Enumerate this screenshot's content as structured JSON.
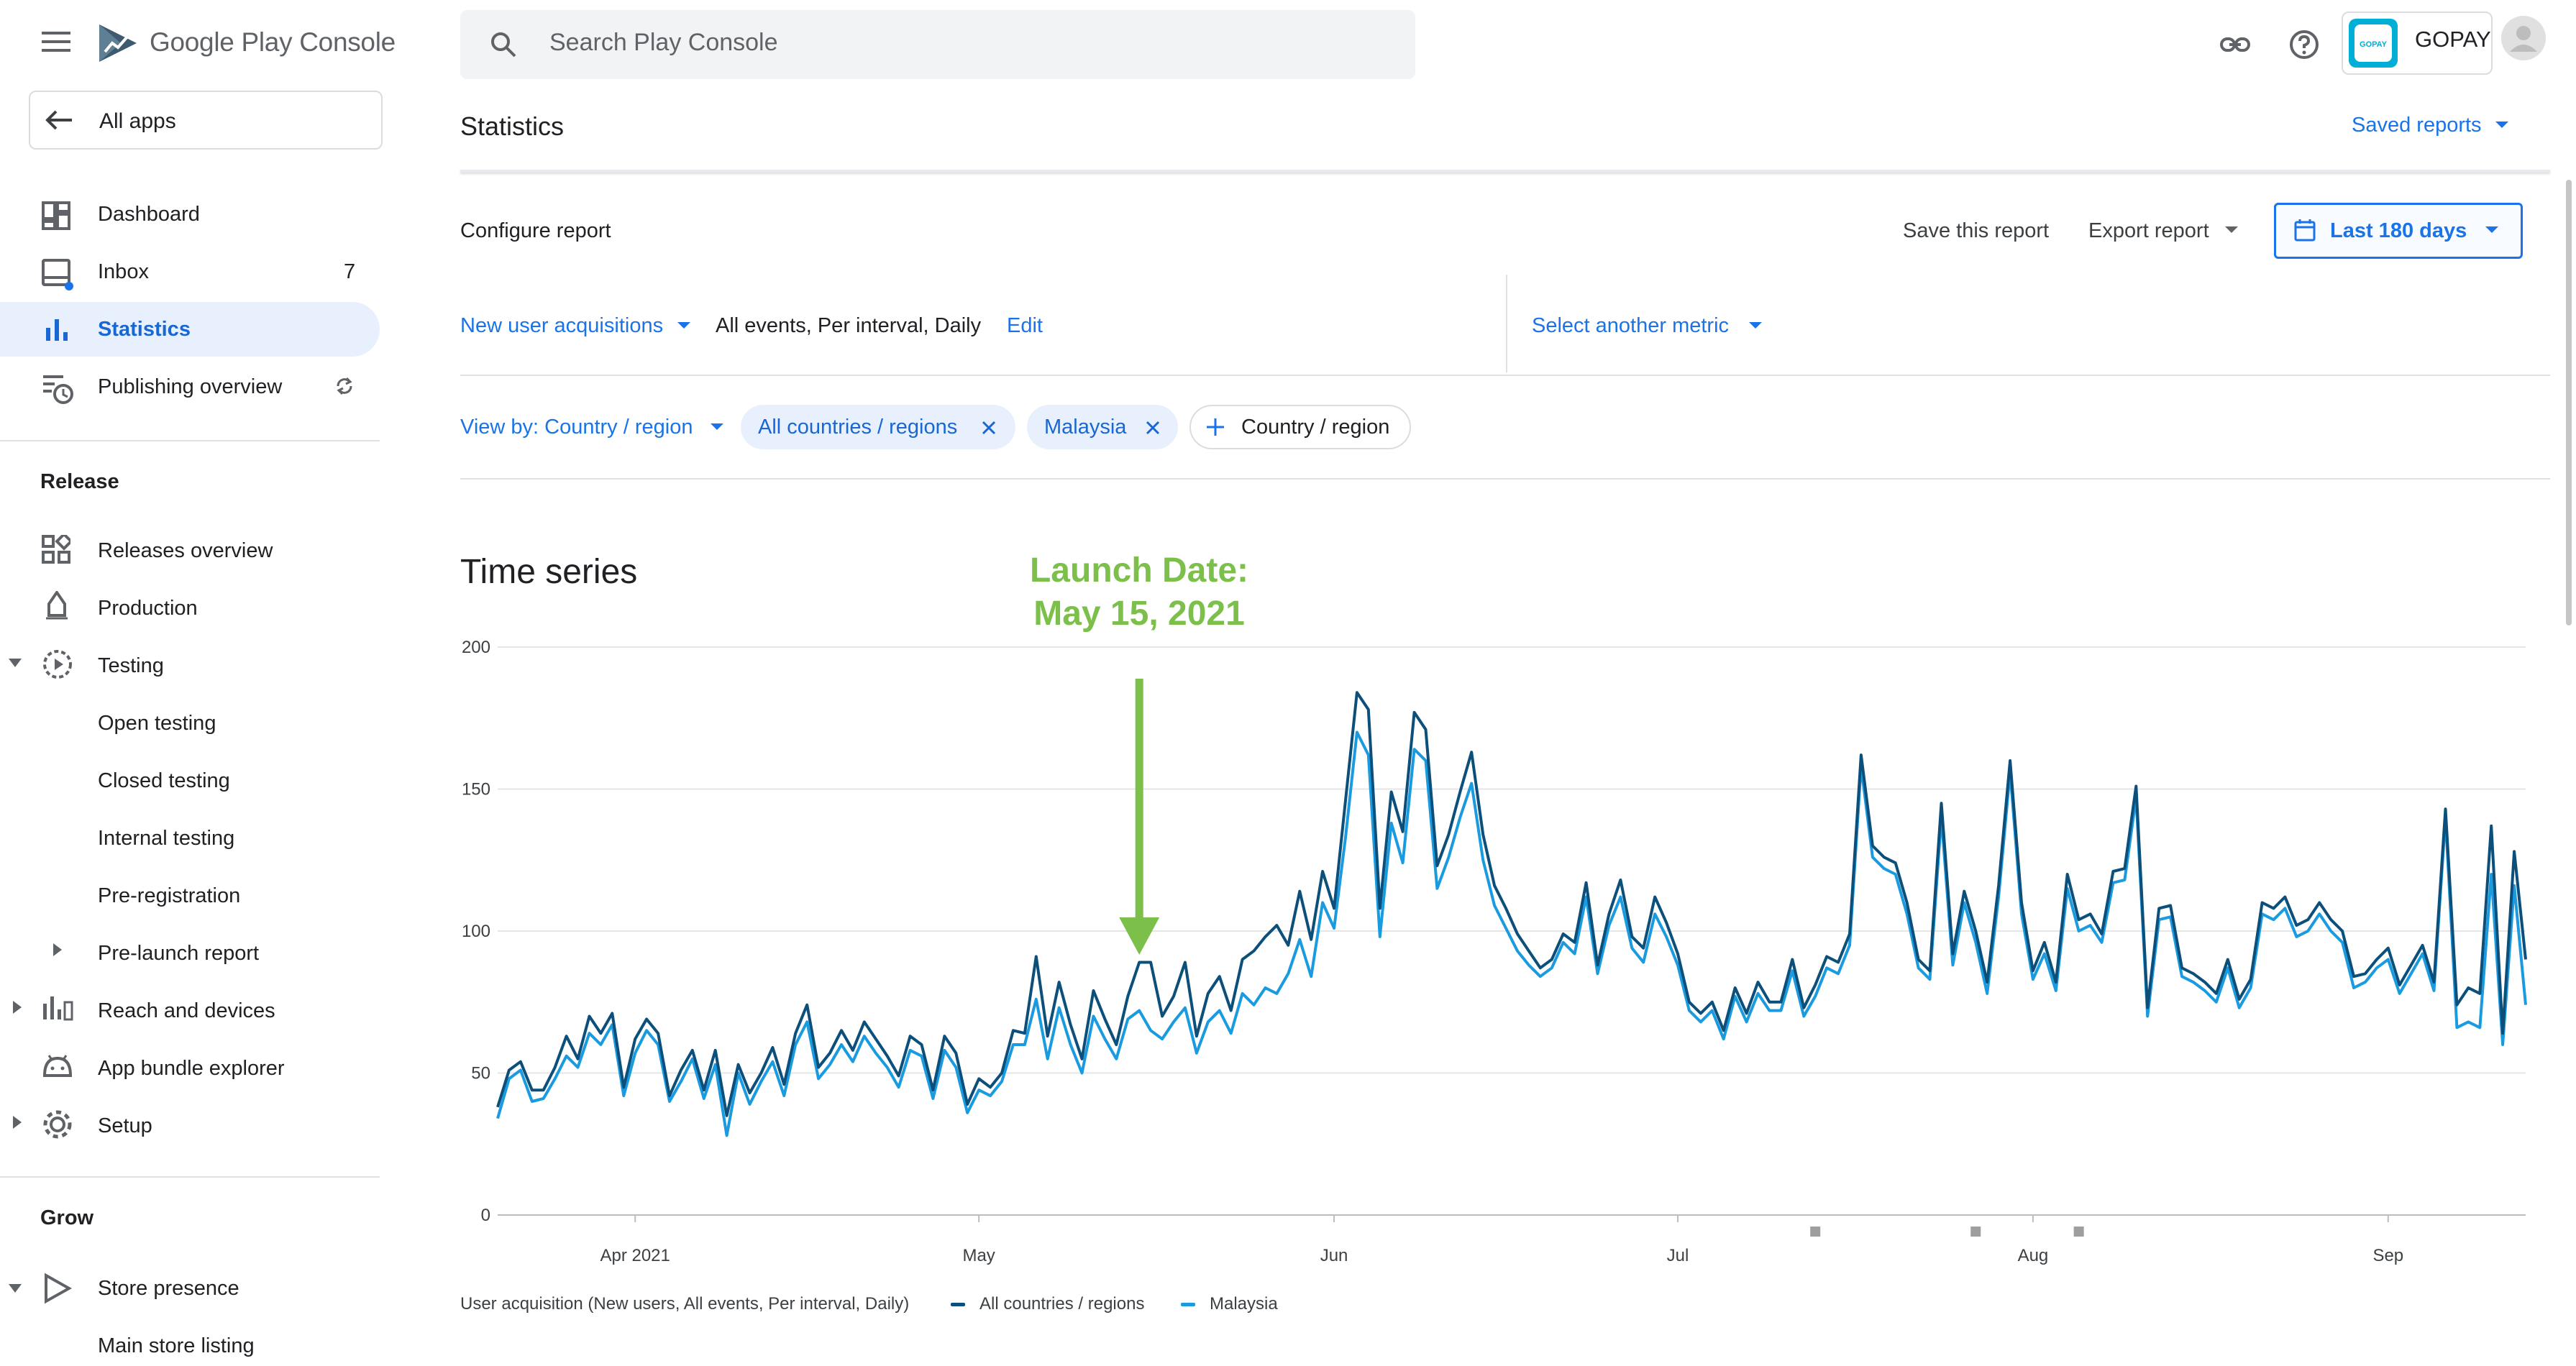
{
  "app": {
    "name": "Google Play Console"
  },
  "search": {
    "placeholder": "Search Play Console"
  },
  "account": {
    "name": "GOPAY"
  },
  "sidebar": {
    "all_apps": "All apps",
    "items": [
      {
        "label": "Dashboard"
      },
      {
        "label": "Inbox",
        "badge": "7"
      },
      {
        "label": "Statistics"
      },
      {
        "label": "Publishing overview"
      }
    ],
    "release": {
      "title": "Release",
      "items": [
        {
          "label": "Releases overview"
        },
        {
          "label": "Production"
        },
        {
          "label": "Testing"
        },
        {
          "label": "Open testing"
        },
        {
          "label": "Closed testing"
        },
        {
          "label": "Internal testing"
        },
        {
          "label": "Pre-registration"
        },
        {
          "label": "Pre-launch report"
        },
        {
          "label": "Reach and devices"
        },
        {
          "label": "App bundle explorer"
        },
        {
          "label": "Setup"
        }
      ]
    },
    "grow": {
      "title": "Grow",
      "items": [
        {
          "label": "Store presence"
        },
        {
          "label": "Main store listing"
        }
      ]
    }
  },
  "page": {
    "title": "Statistics",
    "saved_reports": "Saved reports"
  },
  "config": {
    "title": "Configure report",
    "save": "Save this report",
    "export": "Export report",
    "date_range": "Last 180 days",
    "metric": "New user acquisitions",
    "metric_details": "All events, Per interval, Daily",
    "edit": "Edit",
    "select_metric": "Select another metric",
    "view_by": "View by: Country / region",
    "chips": [
      "All countries / regions",
      "Malaysia"
    ],
    "add_chip": "Country / region"
  },
  "colors": {
    "accent": "#1a73e8",
    "series_all": "#0b4f7a",
    "series_malaysia": "#1a9be0",
    "annotation": "#7cc04b"
  },
  "chart_data": {
    "type": "line",
    "title": "Time series",
    "annotation": {
      "line1": "Launch Date:",
      "line2": "May 15, 2021",
      "x": "2021-05-15"
    },
    "x_start": "2021-03-20",
    "x_ticks": [
      {
        "date": "2021-04-01",
        "label": "Apr 2021"
      },
      {
        "date": "2021-05-01",
        "label": "May"
      },
      {
        "date": "2021-06-01",
        "label": "Jun"
      },
      {
        "date": "2021-07-01",
        "label": "Jul"
      },
      {
        "date": "2021-08-01",
        "label": "Aug"
      },
      {
        "date": "2021-09-01",
        "label": "Sep"
      }
    ],
    "y_ticks": [
      0,
      50,
      100,
      150,
      200
    ],
    "ylim": [
      0,
      200
    ],
    "markers": [
      "2021-07-13",
      "2021-07-27",
      "2021-08-05"
    ],
    "footer_label": "User acquisition (New users, All events, Per interval, Daily)",
    "series": [
      {
        "name": "All countries / regions",
        "color": "#0b4f7a",
        "values": [
          38,
          51,
          54,
          44,
          44,
          52,
          63,
          55,
          70,
          64,
          71,
          45,
          62,
          69,
          64,
          42,
          51,
          58,
          44,
          58,
          35,
          53,
          43,
          50,
          59,
          46,
          64,
          74,
          52,
          57,
          65,
          58,
          68,
          62,
          56,
          49,
          63,
          60,
          44,
          63,
          57,
          39,
          48,
          45,
          50,
          65,
          64,
          91,
          63,
          82,
          67,
          55,
          79,
          69,
          60,
          77,
          89,
          89,
          70,
          77,
          89,
          63,
          78,
          84,
          72,
          90,
          93,
          98,
          102,
          95,
          114,
          97,
          121,
          108,
          146,
          184,
          178,
          108,
          149,
          135,
          177,
          171,
          123,
          134,
          149,
          163,
          134,
          116,
          108,
          99,
          93,
          87,
          90,
          99,
          96,
          117,
          88,
          106,
          118,
          98,
          94,
          112,
          103,
          92,
          75,
          71,
          75,
          65,
          80,
          71,
          82,
          75,
          75,
          90,
          73,
          81,
          91,
          89,
          99,
          162,
          130,
          126,
          124,
          110,
          90,
          86,
          145,
          92,
          114,
          100,
          82,
          116,
          160,
          110,
          86,
          96,
          82,
          120,
          104,
          106,
          99,
          121,
          122,
          151,
          73,
          108,
          109,
          87,
          85,
          82,
          78,
          90,
          76,
          83,
          110,
          108,
          112,
          102,
          104,
          110,
          104,
          100,
          84,
          85,
          90,
          94,
          81,
          88,
          95,
          82,
          143,
          74,
          80,
          78,
          137,
          64,
          128,
          90
        ]
      },
      {
        "name": "Malaysia",
        "color": "#1a9be0",
        "values": [
          34,
          48,
          51,
          40,
          41,
          48,
          56,
          52,
          64,
          60,
          67,
          42,
          57,
          65,
          60,
          40,
          47,
          55,
          41,
          53,
          28,
          50,
          39,
          47,
          54,
          42,
          60,
          68,
          48,
          53,
          60,
          54,
          63,
          57,
          52,
          45,
          58,
          56,
          41,
          58,
          52,
          36,
          44,
          42,
          47,
          60,
          60,
          76,
          55,
          73,
          60,
          50,
          70,
          62,
          55,
          69,
          72,
          65,
          62,
          68,
          73,
          57,
          68,
          72,
          64,
          78,
          74,
          80,
          78,
          85,
          97,
          84,
          110,
          101,
          133,
          170,
          162,
          98,
          138,
          124,
          164,
          160,
          115,
          126,
          140,
          152,
          125,
          109,
          101,
          93,
          88,
          84,
          87,
          96,
          92,
          112,
          85,
          102,
          112,
          94,
          89,
          106,
          98,
          88,
          72,
          68,
          72,
          62,
          77,
          68,
          78,
          72,
          72,
          86,
          70,
          77,
          87,
          85,
          95,
          158,
          126,
          122,
          120,
          106,
          87,
          83,
          140,
          88,
          110,
          96,
          78,
          112,
          156,
          106,
          83,
          92,
          79,
          115,
          100,
          102,
          96,
          117,
          118,
          147,
          70,
          104,
          105,
          84,
          82,
          79,
          75,
          87,
          73,
          80,
          106,
          104,
          108,
          98,
          100,
          106,
          100,
          96,
          80,
          82,
          87,
          90,
          78,
          85,
          92,
          79,
          140,
          66,
          68,
          66,
          120,
          60,
          116,
          74
        ]
      }
    ]
  }
}
